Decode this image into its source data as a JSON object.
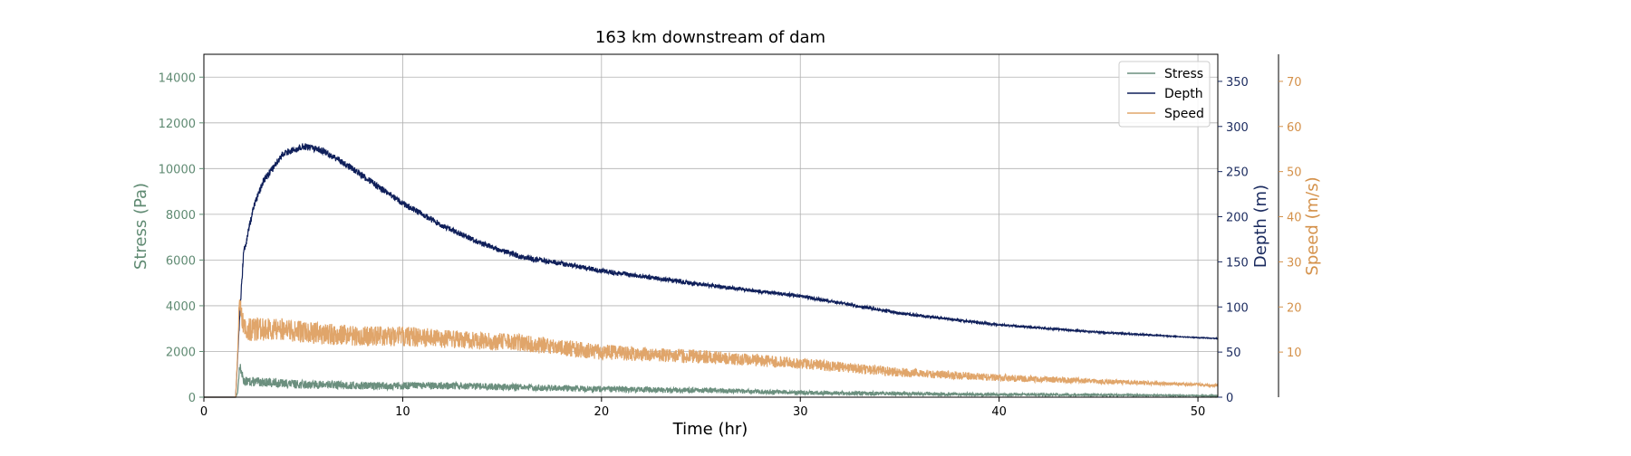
{
  "chart_data": {
    "type": "line",
    "title": "163 km downstream of dam",
    "xlabel": "Time (hr)",
    "xlim": [
      0,
      51
    ],
    "x_ticks": [
      "0",
      "10",
      "20",
      "30",
      "40",
      "50"
    ],
    "grid": true,
    "legend_placement": "top-right",
    "axes": {
      "stress": {
        "label": "Stress (Pa)",
        "ylim": [
          0,
          15000
        ],
        "ticks": [
          "0",
          "2000",
          "4000",
          "6000",
          "8000",
          "10000",
          "12000",
          "14000"
        ],
        "color": "#5f8a72"
      },
      "depth": {
        "label": "Depth (m)",
        "ylim": [
          0,
          380
        ],
        "ticks": [
          "0",
          "50",
          "100",
          "150",
          "200",
          "250",
          "300",
          "350"
        ],
        "color": "#1a2a5e"
      },
      "speed": {
        "label": "Speed (m/s)",
        "ylim": [
          0,
          76
        ],
        "ticks": [
          "10",
          "20",
          "30",
          "40",
          "50",
          "60",
          "70"
        ],
        "color": "#d4914a"
      }
    },
    "series": [
      {
        "name": "Stress",
        "axis": "stress",
        "color": "#6b8f7e",
        "noise": 200,
        "x": [
          0,
          1.6,
          1.7,
          1.8,
          2,
          3,
          4,
          5,
          6,
          8,
          10,
          12,
          15,
          18,
          20,
          25,
          30,
          35,
          40,
          45,
          50,
          51
        ],
        "y": [
          0,
          0,
          200,
          1400,
          700,
          650,
          600,
          550,
          550,
          500,
          500,
          500,
          450,
          400,
          350,
          300,
          200,
          150,
          120,
          100,
          70,
          60
        ]
      },
      {
        "name": "Depth",
        "axis": "depth",
        "color": "#0f1f5a",
        "noise": 4,
        "x": [
          0,
          1.6,
          1.8,
          2,
          2.5,
          3,
          4,
          5,
          6,
          7,
          8,
          10,
          12,
          14,
          16,
          18,
          20,
          25,
          30,
          35,
          40,
          45,
          50,
          51
        ],
        "y": [
          0,
          0,
          90,
          160,
          210,
          240,
          270,
          278,
          273,
          260,
          245,
          215,
          190,
          170,
          155,
          148,
          140,
          125,
          112,
          93,
          80,
          72,
          66,
          65
        ]
      },
      {
        "name": "Speed",
        "axis": "speed",
        "color": "#e0a56a",
        "noise": 2.6,
        "x": [
          0,
          1.6,
          1.7,
          1.8,
          2,
          3,
          4,
          5,
          6,
          8,
          10,
          12,
          14,
          16,
          18,
          20,
          25,
          30,
          35,
          40,
          45,
          50,
          51
        ],
        "y": [
          0,
          0,
          10,
          22,
          15,
          15,
          15,
          14.5,
          14,
          13.5,
          13.5,
          13,
          12.5,
          12,
          11,
          10,
          9,
          7.5,
          5.5,
          4.3,
          3.5,
          2.8,
          2.6
        ]
      }
    ]
  }
}
